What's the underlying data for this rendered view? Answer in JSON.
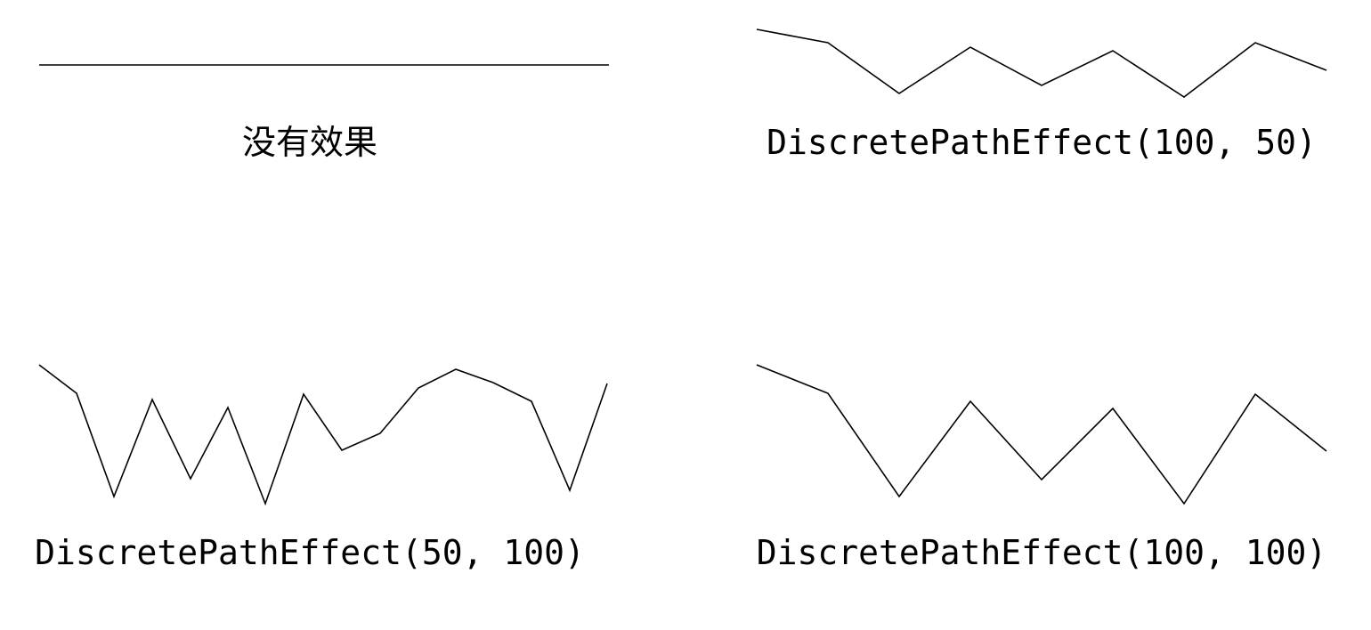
{
  "panels": [
    {
      "caption": "没有效果",
      "effect": "none",
      "path_points": [
        [
          0,
          0
        ],
        [
          640,
          0
        ]
      ]
    },
    {
      "caption": "DiscretePathEffect(100, 50)",
      "effect": "discrete",
      "segment_length": 100,
      "deviation": 50,
      "path_points": [
        [
          0,
          -40
        ],
        [
          80,
          -25
        ],
        [
          160,
          32
        ],
        [
          240,
          -20
        ],
        [
          320,
          23
        ],
        [
          400,
          -16
        ],
        [
          480,
          36
        ],
        [
          560,
          -25
        ],
        [
          640,
          6
        ]
      ]
    },
    {
      "caption": "DiscretePathEffect(50, 100)",
      "effect": "discrete",
      "segment_length": 50,
      "deviation": 100,
      "path_points": [
        [
          0,
          -71
        ],
        [
          42,
          -39
        ],
        [
          84,
          77
        ],
        [
          127,
          -32
        ],
        [
          170,
          57
        ],
        [
          212,
          -23
        ],
        [
          254,
          85
        ],
        [
          297,
          -38
        ],
        [
          340,
          25
        ],
        [
          383,
          6
        ],
        [
          426,
          -45
        ],
        [
          468,
          -66
        ],
        [
          510,
          -51
        ],
        [
          553,
          -30
        ],
        [
          596,
          70
        ],
        [
          638,
          -50
        ]
      ]
    },
    {
      "caption": "DiscretePathEffect(100, 100)",
      "effect": "discrete",
      "segment_length": 100,
      "deviation": 100,
      "path_points": [
        [
          0,
          -71
        ],
        [
          80,
          -39
        ],
        [
          160,
          77
        ],
        [
          240,
          -30
        ],
        [
          320,
          58
        ],
        [
          400,
          -22
        ],
        [
          480,
          85
        ],
        [
          560,
          -38
        ],
        [
          640,
          26
        ]
      ]
    }
  ],
  "colors": {
    "background": "#ffffff",
    "stroke": "#000000",
    "text": "#000000"
  }
}
